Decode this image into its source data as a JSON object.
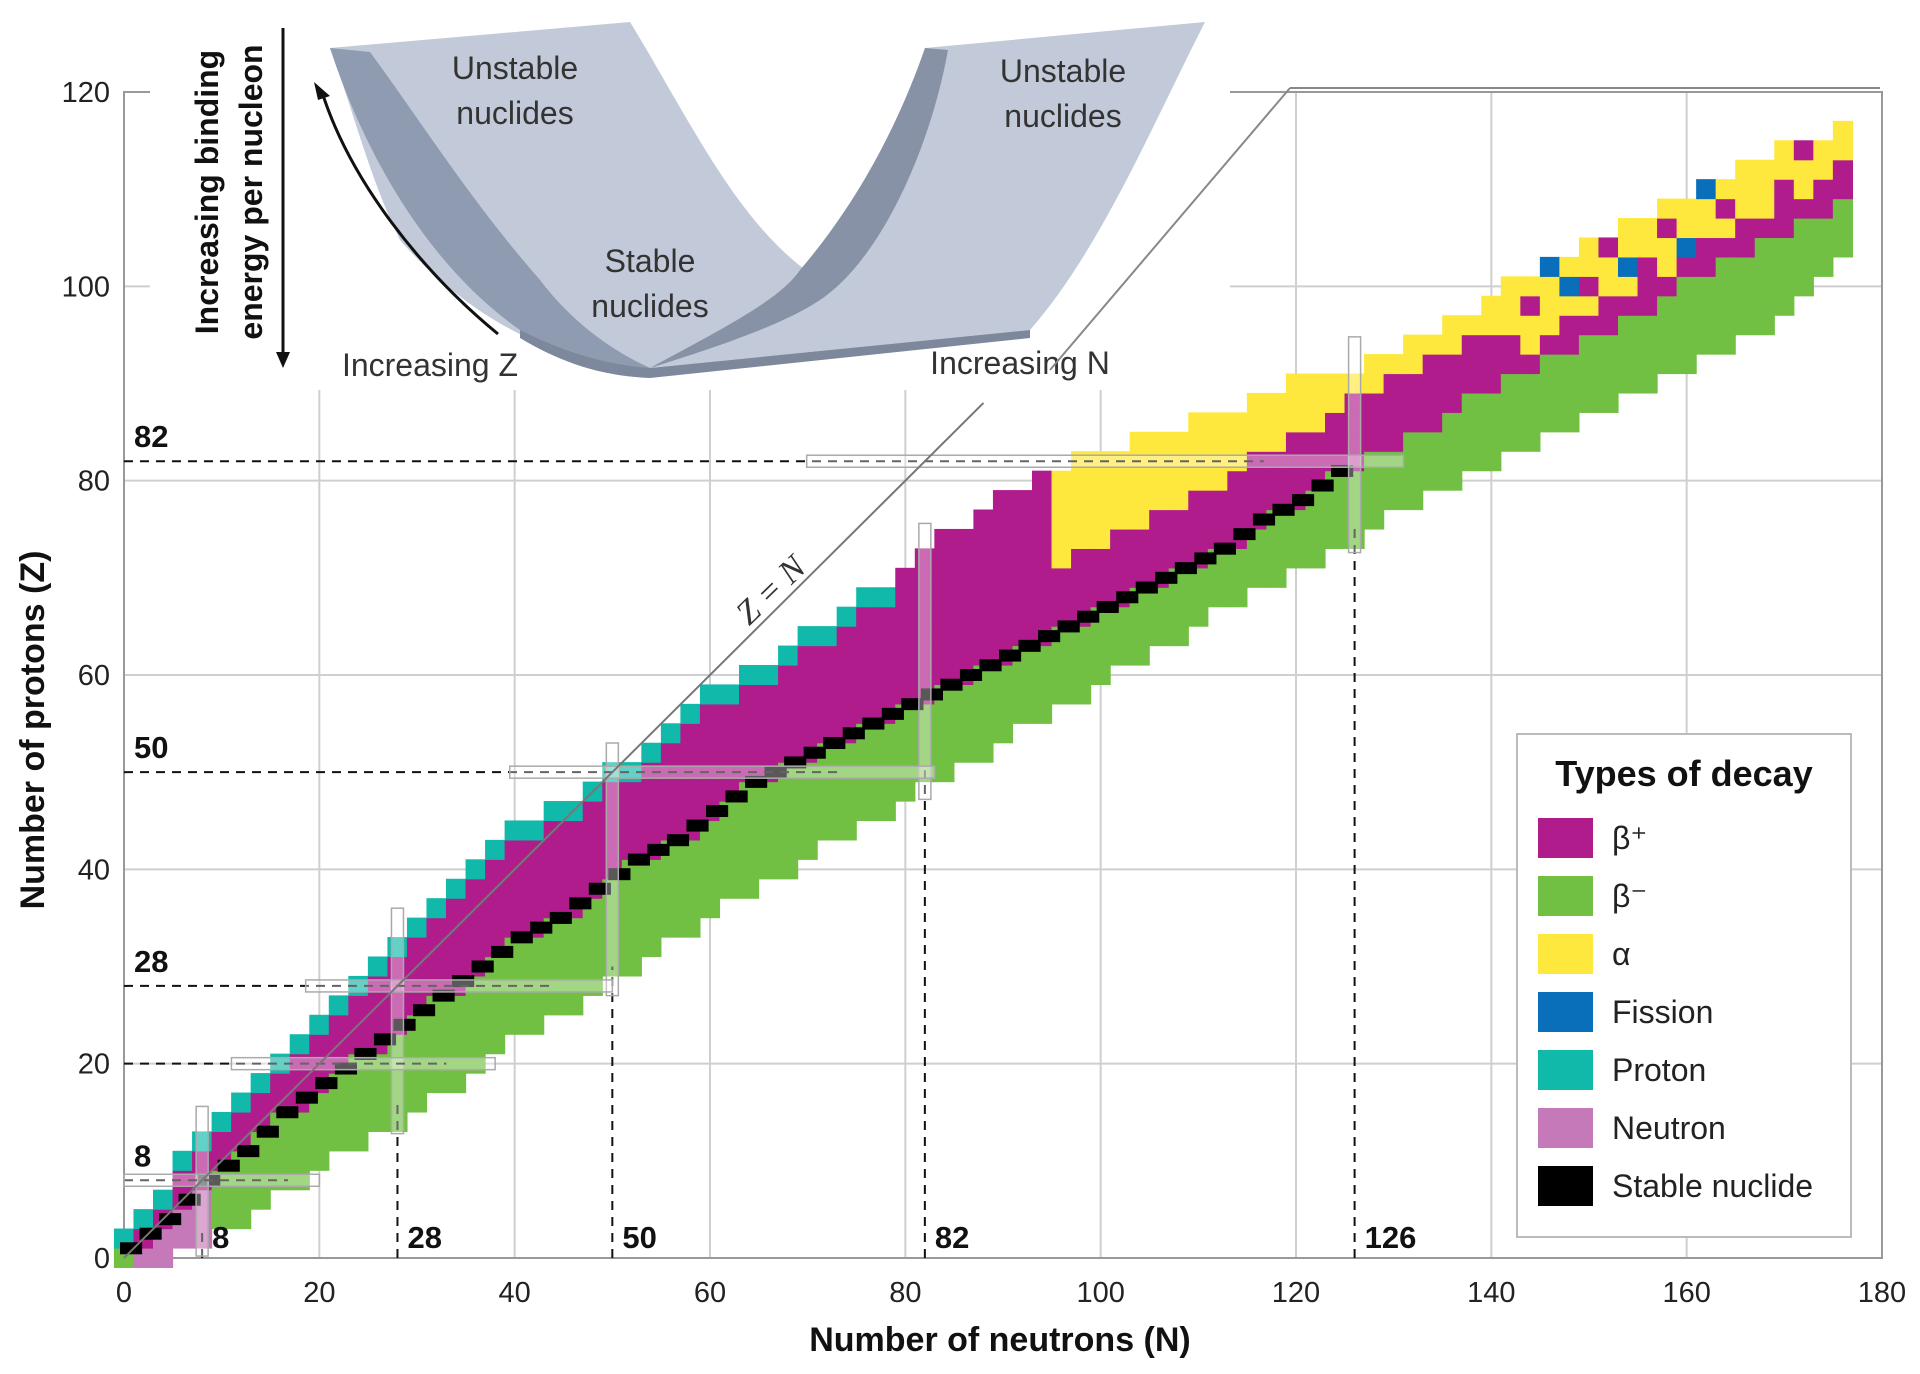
{
  "chart_data": {
    "type": "heatmap",
    "xlabel": "Number of neutrons (N)",
    "ylabel": "Number of protons (Z)",
    "xlim": [
      0,
      180
    ],
    "ylim": [
      0,
      120
    ],
    "x_ticks": [
      0,
      20,
      40,
      60,
      80,
      100,
      120,
      140,
      160,
      180
    ],
    "y_ticks": [
      0,
      20,
      40,
      60,
      80,
      100,
      120
    ],
    "grid": true,
    "diagonal_label": "Z = N",
    "magic_numbers": {
      "neutron": [
        "8",
        "28",
        "50",
        "82",
        "126"
      ],
      "proton": [
        "8",
        "28",
        "50",
        "82"
      ],
      "neutron_values": [
        8,
        28,
        50,
        82,
        126
      ],
      "proton_values": [
        8,
        28,
        50,
        82
      ],
      "dashed_proton_extra": [
        20
      ]
    },
    "legend": {
      "title": "Types of decay",
      "placement": "bottom-right",
      "items": [
        {
          "label": "β⁺",
          "color": "#b01c8c"
        },
        {
          "label": "β⁻",
          "color": "#72c043"
        },
        {
          "label": "α",
          "color": "#ffe83e"
        },
        {
          "label": "Fission",
          "color": "#0a6fbb"
        },
        {
          "label": "Proton",
          "color": "#10b9aa"
        },
        {
          "label": "Neutron",
          "color": "#c679b8"
        },
        {
          "label": "Stable nuclide",
          "color": "#000000"
        }
      ]
    },
    "stability_line": [
      [
        0,
        1
      ],
      [
        4,
        4
      ],
      [
        8,
        8
      ],
      [
        12,
        11
      ],
      [
        16,
        15
      ],
      [
        20,
        18
      ],
      [
        24,
        21
      ],
      [
        28,
        24
      ],
      [
        32,
        27
      ],
      [
        36,
        30
      ],
      [
        40,
        33
      ],
      [
        44,
        35
      ],
      [
        48,
        38
      ],
      [
        52,
        41
      ],
      [
        56,
        43
      ],
      [
        60,
        46
      ],
      [
        64,
        49
      ],
      [
        68,
        51
      ],
      [
        72,
        53
      ],
      [
        76,
        55
      ],
      [
        80,
        57
      ],
      [
        84,
        59
      ],
      [
        88,
        61
      ],
      [
        92,
        63
      ],
      [
        96,
        65
      ],
      [
        100,
        67
      ],
      [
        104,
        69
      ],
      [
        108,
        71
      ],
      [
        112,
        73
      ],
      [
        116,
        76
      ],
      [
        120,
        78
      ],
      [
        124,
        81
      ],
      [
        126,
        82
      ]
    ],
    "band": [
      {
        "n": 0,
        "zmin": 0,
        "zmax": 3
      },
      {
        "n": 10,
        "zmin": 4,
        "zmax": 15
      },
      {
        "n": 20,
        "zmin": 11,
        "zmax": 25
      },
      {
        "n": 30,
        "zmin": 17,
        "zmax": 35
      },
      {
        "n": 40,
        "zmin": 24,
        "zmax": 44
      },
      {
        "n": 50,
        "zmin": 30,
        "zmax": 50
      },
      {
        "n": 60,
        "zmin": 37,
        "zmax": 58
      },
      {
        "n": 70,
        "zmin": 43,
        "zmax": 64
      },
      {
        "n": 80,
        "zmin": 49,
        "zmax": 71
      },
      {
        "n": 90,
        "zmin": 55,
        "zmax": 79
      },
      {
        "n": 100,
        "zmin": 61,
        "zmax": 83
      },
      {
        "n": 110,
        "zmin": 67,
        "zmax": 86
      },
      {
        "n": 120,
        "zmin": 72,
        "zmax": 90
      },
      {
        "n": 130,
        "zmin": 78,
        "zmax": 93
      },
      {
        "n": 140,
        "zmin": 83,
        "zmax": 99
      },
      {
        "n": 150,
        "zmin": 88,
        "zmax": 104
      },
      {
        "n": 160,
        "zmin": 93,
        "zmax": 109
      },
      {
        "n": 170,
        "zmin": 99,
        "zmax": 115
      },
      {
        "n": 176,
        "zmin": 104,
        "zmax": 116
      }
    ],
    "alpha_region_nmin": 95
  },
  "inset": {
    "y_label_line1": "Increasing binding",
    "y_label_line2": "energy per nucleon",
    "left_label_line1": "Unstable",
    "left_label_line2": "nuclides",
    "right_label_line1": "Unstable",
    "right_label_line2": "nuclides",
    "center_label_line1": "Stable",
    "center_label_line2": "nuclides",
    "z_axis_label": "Increasing Z",
    "n_axis_label": "Increasing N"
  }
}
